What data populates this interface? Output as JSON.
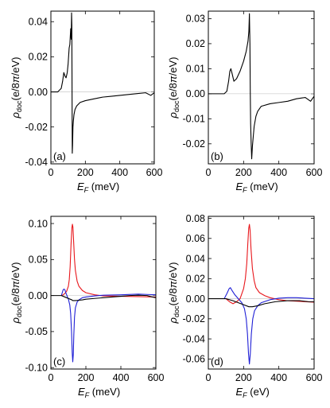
{
  "colors": {
    "black": "#000000",
    "red": "#e8161b",
    "blue": "#1f1fd6",
    "zero_line": "#bdbdbd"
  },
  "chart_data": [
    {
      "type": "line",
      "panel_label": "(a)",
      "xlabel": "E_F (meV)",
      "ylabel": "ρ_doc(e/8π/eV)",
      "xlim": [
        0,
        600
      ],
      "ylim": [
        -0.041,
        0.046
      ],
      "xticks": [
        0,
        200,
        400,
        600
      ],
      "yticks": [
        -0.04,
        -0.02,
        0.0,
        0.02,
        0.04
      ],
      "ytick_labels": [
        "-0.04",
        "-0.02",
        "0.00",
        "0.02",
        "0.04"
      ],
      "grid": false,
      "series": [
        {
          "color": "black",
          "x": [
            0,
            40,
            60,
            68,
            75,
            82,
            88,
            95,
            100,
            106,
            110,
            115,
            118,
            120,
            121.5,
            123,
            124,
            126,
            128,
            130,
            134,
            140,
            150,
            170,
            200,
            250,
            300,
            350,
            400,
            450,
            500,
            550,
            580,
            600
          ],
          "y": [
            0,
            0,
            0.002,
            0.006,
            0.011,
            0.009,
            0.008,
            0.011,
            0.016,
            0.025,
            0.027,
            0.036,
            0.03,
            0.045,
            0.038,
            -0.005,
            -0.035,
            -0.03,
            -0.02,
            -0.017,
            -0.013,
            -0.01,
            -0.008,
            -0.006,
            -0.005,
            -0.004,
            -0.003,
            -0.0025,
            -0.002,
            -0.0015,
            -0.001,
            -0.0005,
            -0.002,
            -0.0005
          ]
        }
      ]
    },
    {
      "type": "line",
      "panel_label": "(b)",
      "xlabel": "E_F (meV)",
      "ylabel": "ρ_doc(e/8π/eV)",
      "xlim": [
        0,
        600
      ],
      "ylim": [
        -0.028,
        0.033
      ],
      "xticks": [
        0,
        200,
        400,
        600
      ],
      "yticks": [
        -0.02,
        -0.01,
        0.0,
        0.01,
        0.02,
        0.03
      ],
      "ytick_labels": [
        "-0.02",
        "-0.01",
        "0.00",
        "0.01",
        "0.02",
        "0.03"
      ],
      "grid": false,
      "series": [
        {
          "color": "black",
          "x": [
            0,
            90,
            105,
            115,
            122,
            128,
            135,
            145,
            160,
            180,
            200,
            215,
            225,
            230,
            233,
            236,
            238,
            240,
            243,
            246,
            250,
            255,
            260,
            270,
            280,
            300,
            350,
            400,
            450,
            500,
            550,
            580,
            600
          ],
          "y": [
            0,
            0,
            0.001,
            0.005,
            0.009,
            0.01,
            0.008,
            0.005,
            0.006,
            0.009,
            0.013,
            0.017,
            0.021,
            0.025,
            0.032,
            0.02,
            0.0,
            -0.012,
            -0.02,
            -0.026,
            -0.021,
            -0.017,
            -0.013,
            -0.009,
            -0.007,
            -0.005,
            -0.004,
            -0.0035,
            -0.003,
            -0.002,
            -0.0015,
            -0.003,
            -0.001
          ]
        }
      ]
    },
    {
      "type": "line",
      "panel_label": "(c)",
      "xlabel": "E_F (meV)",
      "ylabel": "ρ_doc(e/8π/eV)",
      "xlim": [
        0,
        600
      ],
      "ylim": [
        -0.102,
        0.11
      ],
      "xticks": [
        0,
        200,
        400,
        600
      ],
      "yticks": [
        -0.1,
        -0.05,
        0.0,
        0.05,
        0.1
      ],
      "ytick_labels": [
        "-0.10",
        "-0.05",
        "0.00",
        "0.05",
        "0.10"
      ],
      "grid": false,
      "series": [
        {
          "color": "red",
          "x": [
            60,
            70,
            80,
            90,
            100,
            105,
            110,
            115,
            120,
            123,
            126,
            130,
            135,
            140,
            150,
            160,
            180,
            200,
            250,
            300,
            400,
            500,
            600
          ],
          "y": [
            0.0,
            0.001,
            0.003,
            0.006,
            0.013,
            0.022,
            0.04,
            0.07,
            0.094,
            0.099,
            0.095,
            0.075,
            0.05,
            0.035,
            0.02,
            0.013,
            0.007,
            0.004,
            0.001,
            -0.0005,
            -0.001,
            -0.0015,
            -0.002
          ]
        },
        {
          "color": "blue",
          "x": [
            60,
            65,
            70,
            75,
            80,
            85,
            90,
            100,
            108,
            113,
            118,
            122,
            125,
            128,
            131,
            135,
            140,
            150,
            160,
            180,
            200,
            250,
            300,
            400,
            500,
            550,
            600
          ],
          "y": [
            0.0,
            0.004,
            0.008,
            0.009,
            0.008,
            0.004,
            0.001,
            -0.005,
            -0.013,
            -0.025,
            -0.05,
            -0.08,
            -0.092,
            -0.082,
            -0.055,
            -0.03,
            -0.017,
            -0.009,
            -0.006,
            -0.003,
            -0.002,
            -0.0005,
            0.0005,
            0.001,
            0.002,
            0.0015,
            0.001
          ]
        },
        {
          "color": "black",
          "x": [
            0,
            60,
            80,
            100,
            120,
            125,
            140,
            160,
            180,
            200,
            250,
            300,
            350,
            400,
            450,
            500,
            550,
            580,
            600
          ],
          "y": [
            0.0,
            0.0,
            -0.002,
            -0.004,
            -0.006,
            -0.007,
            -0.007,
            -0.0065,
            -0.006,
            -0.005,
            -0.004,
            -0.003,
            -0.002,
            -0.001,
            0.0,
            0.0005,
            0.0,
            -0.002,
            -0.003
          ]
        }
      ]
    },
    {
      "type": "line",
      "panel_label": "(d)",
      "xlabel": "E_F (eV)",
      "ylabel": "ρ_doc(e/8π/eV)",
      "xlim": [
        0,
        600
      ],
      "ylim": [
        -0.07,
        0.082
      ],
      "xticks": [
        0,
        200,
        400,
        600
      ],
      "yticks": [
        -0.06,
        -0.04,
        -0.02,
        0.0,
        0.02,
        0.04,
        0.06,
        0.08
      ],
      "ytick_labels": [
        "-0.06",
        "-0.04",
        "-0.02",
        "0.00",
        "0.02",
        "0.04",
        "0.06",
        "0.08"
      ],
      "grid": false,
      "series": [
        {
          "color": "red",
          "x": [
            100,
            120,
            140,
            160,
            180,
            200,
            210,
            218,
            224,
            229,
            233,
            237,
            242,
            250,
            260,
            270,
            290,
            320,
            350,
            400,
            450,
            500,
            550,
            600
          ],
          "y": [
            0.0,
            -0.003,
            -0.005,
            -0.003,
            0.0,
            0.01,
            0.02,
            0.035,
            0.055,
            0.07,
            0.074,
            0.068,
            0.05,
            0.03,
            0.018,
            0.011,
            0.006,
            0.003,
            0.001,
            -0.001,
            -0.002,
            -0.0025,
            -0.003,
            -0.0035
          ]
        },
        {
          "color": "blue",
          "x": [
            90,
            105,
            118,
            125,
            135,
            150,
            170,
            190,
            205,
            215,
            222,
            228,
            233,
            238,
            244,
            252,
            262,
            280,
            300,
            350,
            400,
            450,
            500,
            600
          ],
          "y": [
            0.0,
            0.005,
            0.01,
            0.011,
            0.008,
            0.004,
            0.0,
            -0.004,
            -0.01,
            -0.02,
            -0.035,
            -0.055,
            -0.065,
            -0.055,
            -0.035,
            -0.02,
            -0.012,
            -0.007,
            -0.004,
            -0.001,
            0.0005,
            0.001,
            0.001,
            0.0
          ]
        },
        {
          "color": "black",
          "x": [
            0,
            100,
            140,
            170,
            200,
            230,
            250,
            280,
            320,
            380,
            450,
            520,
            570,
            600
          ],
          "y": [
            0.0,
            0.0,
            -0.002,
            -0.004,
            -0.006,
            -0.008,
            -0.008,
            -0.007,
            -0.005,
            -0.003,
            -0.002,
            -0.002,
            -0.003,
            -0.003
          ]
        }
      ]
    }
  ]
}
